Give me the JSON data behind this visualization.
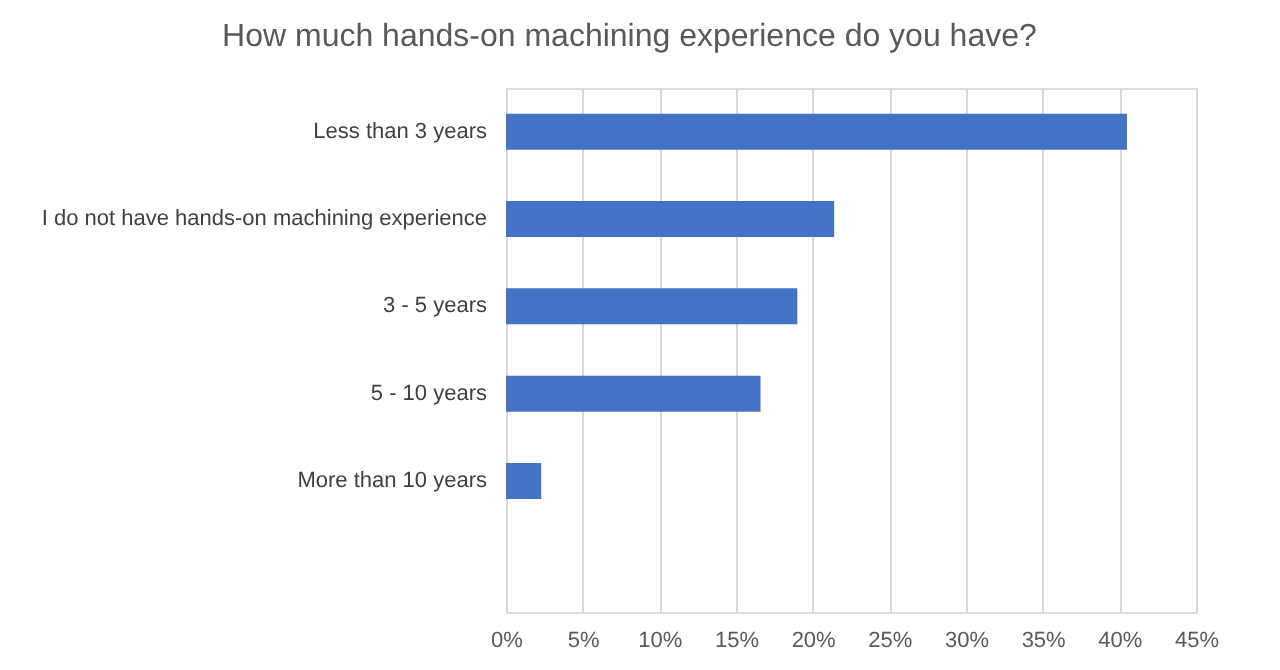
{
  "chart_data": {
    "type": "bar",
    "orientation": "horizontal",
    "title": "How much hands-on machining experience do you have?",
    "categories": [
      "Less than 3 years",
      "I do not have hands-on machining experience",
      "3 - 5 years",
      "5 - 10 years",
      "More than 10 years",
      null
    ],
    "values": [
      40.5,
      21.4,
      19.0,
      16.6,
      2.3,
      null
    ],
    "color": "#4472c4",
    "xlim": [
      0,
      45
    ],
    "xticks": [
      {
        "value": 0,
        "label": "0%"
      },
      {
        "value": 5,
        "label": "5%"
      },
      {
        "value": 10,
        "label": "10%"
      },
      {
        "value": 15,
        "label": "15%"
      },
      {
        "value": 20,
        "label": "20%"
      },
      {
        "value": 25,
        "label": "25%"
      },
      {
        "value": 30,
        "label": "30%"
      },
      {
        "value": 35,
        "label": "35%"
      },
      {
        "value": 40,
        "label": "40%"
      },
      {
        "value": 45,
        "label": "45%"
      }
    ],
    "grid": "x"
  }
}
